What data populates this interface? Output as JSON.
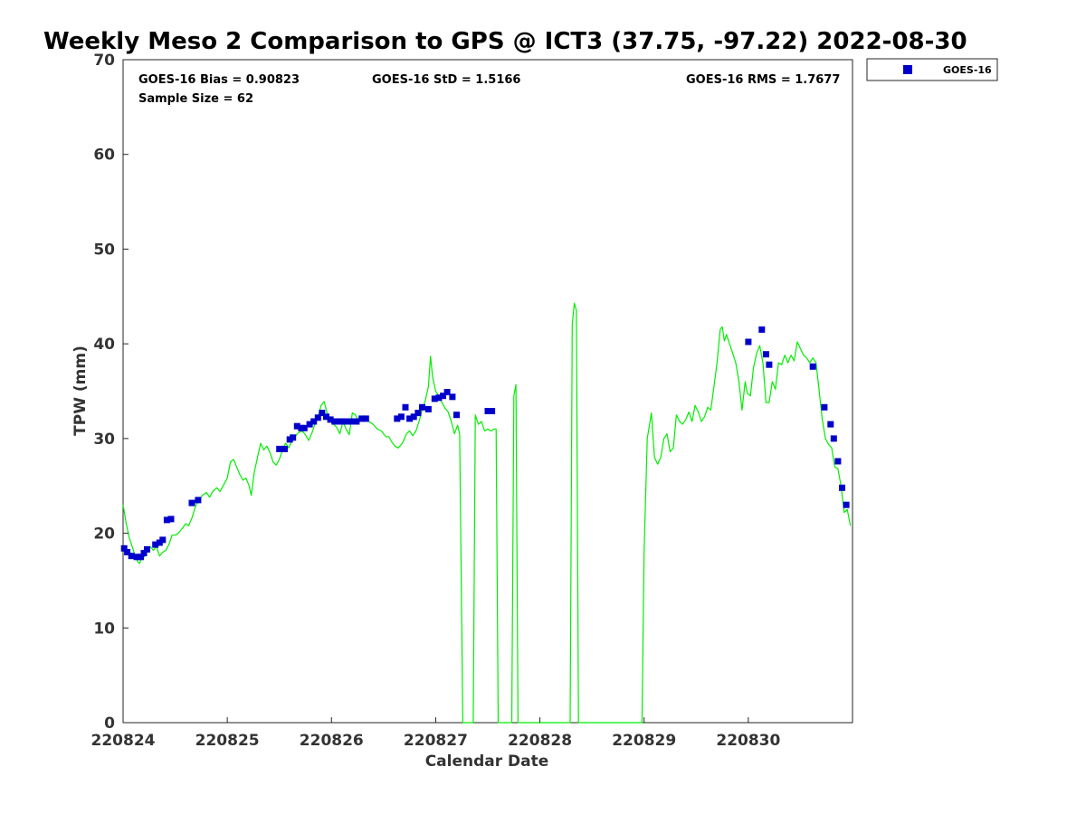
{
  "chart_data": {
    "type": "scatter",
    "title": "Weekly Meso 2 Comparison to GPS @ ICT3 (37.75, -97.22) 2022-08-30",
    "xlabel": "Calendar Date",
    "ylabel": "TPW (mm)",
    "xlim": [
      0,
      7
    ],
    "ylim": [
      0,
      70
    ],
    "x_ticks": [
      0,
      1,
      2,
      3,
      4,
      5,
      6
    ],
    "x_tick_labels": [
      "220824",
      "220825",
      "220826",
      "220827",
      "220828",
      "220829",
      "220830"
    ],
    "y_ticks": [
      0,
      10,
      20,
      30,
      40,
      50,
      60,
      70
    ],
    "y_tick_labels": [
      "0",
      "10",
      "20",
      "30",
      "40",
      "50",
      "60",
      "70"
    ],
    "grid": false,
    "legend_position": "top-right outside",
    "stats": {
      "bias": "GOES-16 Bias = 0.90823",
      "std": "GOES-16 StD = 1.5166",
      "rms": "GOES-16 RMS = 1.7677",
      "sample": "Sample Size = 62"
    },
    "series": [
      {
        "name": "GOES-16",
        "kind": "marker",
        "marker": "square",
        "color": "#0000cc",
        "points": [
          [
            0.01,
            18.4
          ],
          [
            0.04,
            18.0
          ],
          [
            0.08,
            17.6
          ],
          [
            0.13,
            17.5
          ],
          [
            0.17,
            17.5
          ],
          [
            0.2,
            17.9
          ],
          [
            0.23,
            18.3
          ],
          [
            0.31,
            18.8
          ],
          [
            0.35,
            19.0
          ],
          [
            0.38,
            19.3
          ],
          [
            0.42,
            21.4
          ],
          [
            0.46,
            21.5
          ],
          [
            0.66,
            23.2
          ],
          [
            0.72,
            23.5
          ],
          [
            1.5,
            28.9
          ],
          [
            1.55,
            28.9
          ],
          [
            1.6,
            29.9
          ],
          [
            1.63,
            30.1
          ],
          [
            1.67,
            31.3
          ],
          [
            1.71,
            31.1
          ],
          [
            1.74,
            31.1
          ],
          [
            1.79,
            31.5
          ],
          [
            1.83,
            31.8
          ],
          [
            1.87,
            32.2
          ],
          [
            1.91,
            32.7
          ],
          [
            1.95,
            32.3
          ],
          [
            1.99,
            32.0
          ],
          [
            2.03,
            31.8
          ],
          [
            2.07,
            31.8
          ],
          [
            2.11,
            31.8
          ],
          [
            2.15,
            31.8
          ],
          [
            2.2,
            31.8
          ],
          [
            2.24,
            31.8
          ],
          [
            2.29,
            32.1
          ],
          [
            2.33,
            32.1
          ],
          [
            2.63,
            32.1
          ],
          [
            2.67,
            32.3
          ],
          [
            2.71,
            33.3
          ],
          [
            2.75,
            32.1
          ],
          [
            2.79,
            32.3
          ],
          [
            2.83,
            32.7
          ],
          [
            2.87,
            33.3
          ],
          [
            2.93,
            33.1
          ],
          [
            2.99,
            34.2
          ],
          [
            3.03,
            34.3
          ],
          [
            3.07,
            34.5
          ],
          [
            3.11,
            34.9
          ],
          [
            3.16,
            34.4
          ],
          [
            3.2,
            32.5
          ],
          [
            3.5,
            32.9
          ],
          [
            3.54,
            32.9
          ],
          [
            6.0,
            40.2
          ],
          [
            6.13,
            41.5
          ],
          [
            6.17,
            38.9
          ],
          [
            6.2,
            37.8
          ],
          [
            6.62,
            37.6
          ],
          [
            6.73,
            33.3
          ],
          [
            6.79,
            31.5
          ],
          [
            6.82,
            30.0
          ],
          [
            6.86,
            27.6
          ],
          [
            6.9,
            24.8
          ],
          [
            6.94,
            23.0
          ]
        ]
      },
      {
        "name": "",
        "kind": "line",
        "color": "#00ee00",
        "points": [
          [
            0.0,
            23.0
          ],
          [
            0.03,
            21.0
          ],
          [
            0.06,
            19.5
          ],
          [
            0.09,
            18.5
          ],
          [
            0.12,
            17.5
          ],
          [
            0.14,
            17.0
          ],
          [
            0.16,
            16.8
          ],
          [
            0.18,
            17.6
          ],
          [
            0.2,
            17.5
          ],
          [
            0.23,
            18.0
          ],
          [
            0.26,
            18.6
          ],
          [
            0.29,
            18.2
          ],
          [
            0.32,
            18.6
          ],
          [
            0.35,
            17.6
          ],
          [
            0.38,
            18.0
          ],
          [
            0.41,
            18.2
          ],
          [
            0.44,
            18.8
          ],
          [
            0.47,
            19.8
          ],
          [
            0.5,
            19.8
          ],
          [
            0.53,
            20.0
          ],
          [
            0.56,
            20.4
          ],
          [
            0.6,
            21.0
          ],
          [
            0.63,
            20.8
          ],
          [
            0.66,
            21.6
          ],
          [
            0.7,
            23.0
          ],
          [
            0.73,
            23.5
          ],
          [
            0.76,
            24.0
          ],
          [
            0.8,
            24.3
          ],
          [
            0.83,
            23.8
          ],
          [
            0.86,
            24.4
          ],
          [
            0.9,
            24.8
          ],
          [
            0.93,
            24.4
          ],
          [
            0.96,
            25.0
          ],
          [
            1.0,
            25.8
          ],
          [
            1.03,
            27.5
          ],
          [
            1.06,
            27.8
          ],
          [
            1.09,
            27.0
          ],
          [
            1.12,
            26.2
          ],
          [
            1.15,
            25.6
          ],
          [
            1.18,
            25.8
          ],
          [
            1.21,
            25.0
          ],
          [
            1.23,
            24.0
          ],
          [
            1.26,
            26.5
          ],
          [
            1.29,
            28.0
          ],
          [
            1.32,
            29.5
          ],
          [
            1.35,
            28.8
          ],
          [
            1.38,
            29.2
          ],
          [
            1.41,
            28.5
          ],
          [
            1.44,
            27.5
          ],
          [
            1.47,
            27.2
          ],
          [
            1.5,
            27.8
          ],
          [
            1.53,
            28.8
          ],
          [
            1.56,
            29.5
          ],
          [
            1.59,
            29.0
          ],
          [
            1.62,
            29.8
          ],
          [
            1.65,
            30.2
          ],
          [
            1.68,
            30.6
          ],
          [
            1.72,
            30.8
          ],
          [
            1.75,
            30.4
          ],
          [
            1.78,
            29.8
          ],
          [
            1.81,
            30.5
          ],
          [
            1.84,
            31.5
          ],
          [
            1.87,
            32.2
          ],
          [
            1.9,
            33.5
          ],
          [
            1.93,
            33.9
          ],
          [
            1.96,
            32.6
          ],
          [
            1.99,
            32.0
          ],
          [
            2.02,
            31.5
          ],
          [
            2.05,
            31.2
          ],
          [
            2.08,
            30.5
          ],
          [
            2.11,
            31.8
          ],
          [
            2.14,
            31.0
          ],
          [
            2.17,
            30.4
          ],
          [
            2.2,
            32.7
          ],
          [
            2.23,
            32.5
          ],
          [
            2.26,
            31.8
          ],
          [
            2.29,
            32.2
          ],
          [
            2.32,
            32.3
          ],
          [
            2.36,
            31.8
          ],
          [
            2.4,
            31.5
          ],
          [
            2.44,
            31.0
          ],
          [
            2.48,
            30.8
          ],
          [
            2.52,
            30.2
          ],
          [
            2.55,
            30.2
          ],
          [
            2.58,
            29.6
          ],
          [
            2.61,
            29.2
          ],
          [
            2.64,
            29.0
          ],
          [
            2.68,
            29.5
          ],
          [
            2.72,
            30.5
          ],
          [
            2.75,
            30.8
          ],
          [
            2.78,
            30.3
          ],
          [
            2.81,
            30.8
          ],
          [
            2.84,
            31.8
          ],
          [
            2.87,
            33.0
          ],
          [
            2.9,
            34.0
          ],
          [
            2.93,
            35.5
          ],
          [
            2.95,
            38.7
          ],
          [
            2.97,
            36.5
          ],
          [
            3.0,
            35.0
          ],
          [
            3.03,
            34.5
          ],
          [
            3.06,
            33.8
          ],
          [
            3.09,
            33.2
          ],
          [
            3.12,
            32.8
          ],
          [
            3.15,
            31.8
          ],
          [
            3.18,
            30.5
          ],
          [
            3.21,
            31.4
          ],
          [
            3.23,
            30.5
          ],
          [
            3.26,
            0.0
          ],
          [
            3.36,
            0.0
          ],
          [
            3.38,
            32.5
          ],
          [
            3.41,
            31.5
          ],
          [
            3.44,
            31.8
          ],
          [
            3.47,
            30.8
          ],
          [
            3.5,
            31.0
          ],
          [
            3.53,
            30.8
          ],
          [
            3.56,
            31.0
          ],
          [
            3.58,
            31.0
          ],
          [
            3.6,
            0.0
          ],
          [
            3.73,
            0.0
          ],
          [
            3.75,
            34.5
          ],
          [
            3.77,
            35.7
          ],
          [
            3.79,
            0.0
          ],
          [
            4.29,
            0.0
          ],
          [
            4.31,
            42.0
          ],
          [
            4.33,
            44.3
          ],
          [
            4.35,
            43.5
          ],
          [
            4.37,
            0.0
          ],
          [
            4.98,
            0.0
          ],
          [
            5.0,
            18.0
          ],
          [
            5.03,
            30.0
          ],
          [
            5.07,
            32.7
          ],
          [
            5.1,
            28.0
          ],
          [
            5.13,
            27.3
          ],
          [
            5.16,
            28.0
          ],
          [
            5.19,
            30.0
          ],
          [
            5.22,
            30.5
          ],
          [
            5.25,
            28.6
          ],
          [
            5.28,
            29.0
          ],
          [
            5.31,
            32.5
          ],
          [
            5.34,
            31.8
          ],
          [
            5.37,
            31.5
          ],
          [
            5.4,
            32.0
          ],
          [
            5.43,
            32.8
          ],
          [
            5.46,
            31.8
          ],
          [
            5.49,
            33.5
          ],
          [
            5.52,
            32.8
          ],
          [
            5.55,
            31.8
          ],
          [
            5.58,
            32.3
          ],
          [
            5.61,
            33.3
          ],
          [
            5.64,
            33.0
          ],
          [
            5.67,
            35.5
          ],
          [
            5.7,
            38.0
          ],
          [
            5.73,
            41.5
          ],
          [
            5.75,
            41.8
          ],
          [
            5.77,
            40.3
          ],
          [
            5.79,
            41.0
          ],
          [
            5.82,
            40.0
          ],
          [
            5.85,
            39.0
          ],
          [
            5.88,
            38.0
          ],
          [
            5.91,
            36.0
          ],
          [
            5.94,
            33.0
          ],
          [
            5.97,
            36.0
          ],
          [
            5.99,
            34.8
          ],
          [
            6.02,
            34.5
          ],
          [
            6.05,
            37.5
          ],
          [
            6.08,
            39.0
          ],
          [
            6.11,
            39.8
          ],
          [
            6.14,
            38.0
          ],
          [
            6.17,
            33.8
          ],
          [
            6.2,
            33.8
          ],
          [
            6.23,
            36.0
          ],
          [
            6.26,
            35.2
          ],
          [
            6.29,
            38.0
          ],
          [
            6.32,
            37.8
          ],
          [
            6.35,
            38.8
          ],
          [
            6.38,
            38.0
          ],
          [
            6.41,
            38.8
          ],
          [
            6.44,
            38.2
          ],
          [
            6.47,
            40.2
          ],
          [
            6.5,
            39.5
          ],
          [
            6.53,
            38.8
          ],
          [
            6.56,
            38.5
          ],
          [
            6.59,
            38.0
          ],
          [
            6.62,
            38.5
          ],
          [
            6.65,
            38.0
          ],
          [
            6.68,
            35.0
          ],
          [
            6.71,
            32.0
          ],
          [
            6.74,
            30.0
          ],
          [
            6.77,
            29.4
          ],
          [
            6.8,
            29.0
          ],
          [
            6.83,
            27.0
          ],
          [
            6.86,
            26.8
          ],
          [
            6.89,
            25.0
          ],
          [
            6.92,
            22.2
          ],
          [
            6.95,
            22.5
          ],
          [
            6.98,
            20.8
          ]
        ]
      }
    ]
  }
}
